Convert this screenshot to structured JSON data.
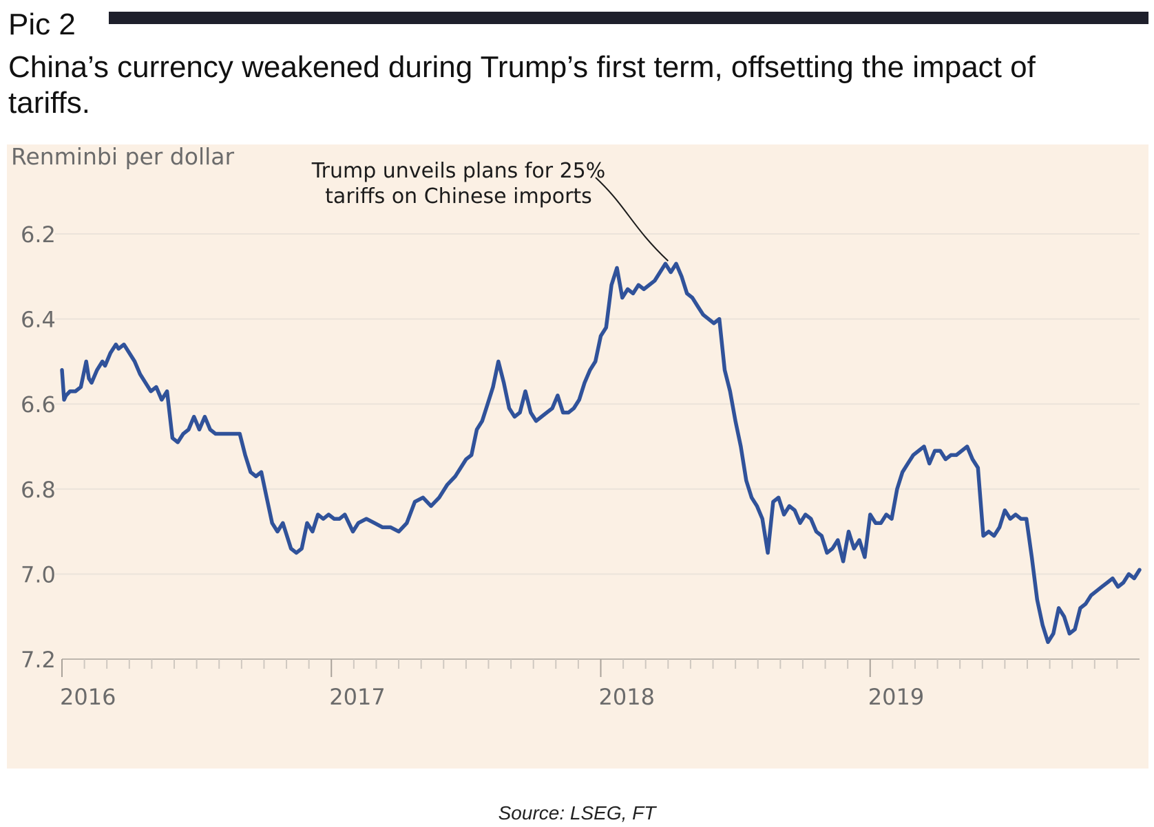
{
  "header": {
    "label": "Pic 2",
    "headline": "China’s currency weakened during Trump’s first term, offsetting the impact of tariffs."
  },
  "source": "Source: LSEG, FT",
  "colors": {
    "line": "#30529a",
    "panel": "#fbf0e4",
    "grid": "#ebe3da",
    "axis_text": "#6b6b6b",
    "rule": "#1e1f2b"
  },
  "chart_data": {
    "type": "line",
    "title": "",
    "ylabel": "Renminbi per dollar",
    "y_inverted": true,
    "ylim": [
      6.2,
      7.2
    ],
    "y_ticks": [
      "6.2",
      "6.4",
      "6.6",
      "6.8",
      "7.0",
      "7.2"
    ],
    "xlim": [
      2016.0,
      2020.0
    ],
    "x_ticks": [
      "2016",
      "2017",
      "2018",
      "2019"
    ],
    "grid": "horizontal",
    "annotation": {
      "text_lines": [
        "Trump unveils plans for 25%",
        "tariffs on Chinese imports"
      ],
      "x": 2018.25,
      "y": 6.27
    },
    "series": [
      {
        "name": "",
        "x": [
          2016.0,
          2016.008,
          2016.015,
          2016.03,
          2016.05,
          2016.07,
          2016.09,
          2016.1,
          2016.11,
          2016.13,
          2016.15,
          2016.16,
          2016.18,
          2016.2,
          2016.21,
          2016.23,
          2016.25,
          2016.27,
          2016.29,
          2016.31,
          2016.33,
          2016.35,
          2016.37,
          2016.39,
          2016.41,
          2016.43,
          2016.45,
          2016.47,
          2016.49,
          2016.51,
          2016.53,
          2016.55,
          2016.57,
          2016.59,
          2016.61,
          2016.63,
          2016.66,
          2016.68,
          2016.7,
          2016.72,
          2016.74,
          2016.76,
          2016.78,
          2016.8,
          2016.82,
          2016.85,
          2016.87,
          2016.89,
          2016.91,
          2016.93,
          2016.95,
          2016.97,
          2016.99,
          2017.01,
          2017.03,
          2017.05,
          2017.08,
          2017.1,
          2017.13,
          2017.16,
          2017.19,
          2017.22,
          2017.25,
          2017.28,
          2017.31,
          2017.34,
          2017.37,
          2017.4,
          2017.43,
          2017.46,
          2017.48,
          2017.5,
          2017.52,
          2017.54,
          2017.56,
          2017.58,
          2017.6,
          2017.62,
          2017.64,
          2017.66,
          2017.68,
          2017.7,
          2017.72,
          2017.74,
          2017.76,
          2017.78,
          2017.8,
          2017.82,
          2017.84,
          2017.86,
          2017.88,
          2017.9,
          2017.92,
          2017.94,
          2017.96,
          2017.98,
          2018.0,
          2018.02,
          2018.04,
          2018.06,
          2018.08,
          2018.1,
          2018.12,
          2018.14,
          2018.16,
          2018.18,
          2018.2,
          2018.22,
          2018.24,
          2018.26,
          2018.28,
          2018.3,
          2018.32,
          2018.34,
          2018.36,
          2018.38,
          2018.4,
          2018.42,
          2018.44,
          2018.46,
          2018.48,
          2018.5,
          2018.52,
          2018.54,
          2018.56,
          2018.58,
          2018.6,
          2018.62,
          2018.64,
          2018.66,
          2018.68,
          2018.7,
          2018.72,
          2018.74,
          2018.76,
          2018.78,
          2018.8,
          2018.82,
          2018.84,
          2018.86,
          2018.88,
          2018.9,
          2018.92,
          2018.94,
          2018.96,
          2018.98,
          2019.0,
          2019.02,
          2019.04,
          2019.06,
          2019.08,
          2019.1,
          2019.12,
          2019.14,
          2019.16,
          2019.18,
          2019.2,
          2019.22,
          2019.24,
          2019.26,
          2019.28,
          2019.3,
          2019.32,
          2019.34,
          2019.36,
          2019.38,
          2019.4,
          2019.42,
          2019.44,
          2019.46,
          2019.48,
          2019.5,
          2019.52,
          2019.54,
          2019.56,
          2019.58,
          2019.6,
          2019.62,
          2019.64,
          2019.66,
          2019.68,
          2019.7,
          2019.72,
          2019.74,
          2019.76,
          2019.78,
          2019.8,
          2019.82,
          2019.84,
          2019.86,
          2019.88,
          2019.9,
          2019.92,
          2019.94,
          2019.96,
          2019.98,
          2020.0
        ],
        "values": [
          6.52,
          6.59,
          6.58,
          6.57,
          6.57,
          6.56,
          6.5,
          6.54,
          6.55,
          6.52,
          6.5,
          6.51,
          6.48,
          6.46,
          6.47,
          6.46,
          6.48,
          6.5,
          6.53,
          6.55,
          6.57,
          6.56,
          6.59,
          6.57,
          6.68,
          6.69,
          6.67,
          6.66,
          6.63,
          6.66,
          6.63,
          6.66,
          6.67,
          6.67,
          6.67,
          6.67,
          6.67,
          6.72,
          6.76,
          6.77,
          6.76,
          6.82,
          6.88,
          6.9,
          6.88,
          6.94,
          6.95,
          6.94,
          6.88,
          6.9,
          6.86,
          6.87,
          6.86,
          6.87,
          6.87,
          6.86,
          6.9,
          6.88,
          6.87,
          6.88,
          6.89,
          6.89,
          6.9,
          6.88,
          6.83,
          6.82,
          6.84,
          6.82,
          6.79,
          6.77,
          6.75,
          6.73,
          6.72,
          6.66,
          6.64,
          6.6,
          6.56,
          6.5,
          6.55,
          6.61,
          6.63,
          6.62,
          6.57,
          6.62,
          6.64,
          6.63,
          6.62,
          6.61,
          6.58,
          6.62,
          6.62,
          6.61,
          6.59,
          6.55,
          6.52,
          6.5,
          6.44,
          6.42,
          6.32,
          6.28,
          6.35,
          6.33,
          6.34,
          6.32,
          6.33,
          6.32,
          6.31,
          6.29,
          6.27,
          6.29,
          6.27,
          6.3,
          6.34,
          6.35,
          6.37,
          6.39,
          6.4,
          6.41,
          6.4,
          6.52,
          6.57,
          6.64,
          6.7,
          6.78,
          6.82,
          6.84,
          6.87,
          6.95,
          6.83,
          6.82,
          6.86,
          6.84,
          6.85,
          6.88,
          6.86,
          6.87,
          6.9,
          6.91,
          6.95,
          6.94,
          6.92,
          6.97,
          6.9,
          6.94,
          6.92,
          6.96,
          6.86,
          6.88,
          6.88,
          6.86,
          6.87,
          6.8,
          6.76,
          6.74,
          6.72,
          6.71,
          6.7,
          6.74,
          6.71,
          6.71,
          6.73,
          6.72,
          6.72,
          6.71,
          6.7,
          6.73,
          6.75,
          6.91,
          6.9,
          6.91,
          6.89,
          6.85,
          6.87,
          6.86,
          6.87,
          6.87,
          6.96,
          7.06,
          7.12,
          7.16,
          7.14,
          7.08,
          7.1,
          7.14,
          7.13,
          7.08,
          7.07,
          7.05,
          7.04,
          7.03,
          7.02,
          7.01,
          7.03,
          7.02,
          7.0,
          7.01,
          6.99
        ]
      }
    ]
  }
}
